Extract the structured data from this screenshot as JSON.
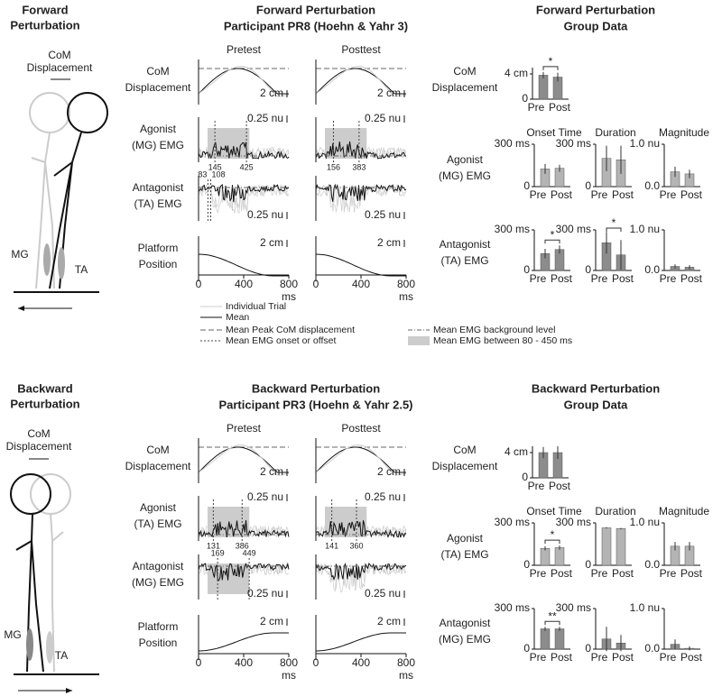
{
  "panels": [
    {
      "title": [
        "Forward",
        "Perturbation"
      ],
      "com_label": [
        "CoM",
        "Displacement"
      ],
      "muscle_labels": [
        "MG",
        "TA"
      ],
      "traces_title": [
        "Forward Perturbation",
        "Participant PR8 (Hoehn & Yahr 3)"
      ],
      "conditions": [
        {
          "name": "Pretest",
          "scale_labels": [
            "2 cm",
            "0.25 nu",
            "0.25 nu",
            "2 cm"
          ],
          "agonist_onsets": [
            145,
            425
          ],
          "antagonist_onsets": [
            83,
            108
          ]
        },
        {
          "name": "Posttest",
          "scale_labels": [
            "2 cm",
            "0.25 nu",
            "0.25 nu",
            "2 cm"
          ],
          "agonist_onsets": [
            156,
            383
          ]
        }
      ],
      "row_labels": [
        [
          "CoM",
          "Displacement"
        ],
        [
          "Agonist",
          "(MG) EMG"
        ],
        [
          "Antagonist",
          "(TA) EMG"
        ],
        [
          "Platform",
          "Position"
        ]
      ],
      "xlim": [
        0,
        800
      ],
      "xticks": [
        0,
        400,
        800
      ],
      "x_label": "ms",
      "group_title": [
        "Forward Perturbation",
        "Group Data"
      ],
      "group_row_labels": [
        [
          "CoM",
          "Displacement"
        ],
        [
          "Agonist",
          "(MG) EMG"
        ],
        [
          "Antagonist",
          "(TA) EMG"
        ]
      ]
    },
    {
      "title": [
        "Backward",
        "Perturbation"
      ],
      "com_label": [
        "CoM",
        "Displacement"
      ],
      "muscle_labels": [
        "MG",
        "TA"
      ],
      "traces_title": [
        "Backward Perturbation",
        "Participant PR3 (Hoehn & Yahr 2.5)"
      ],
      "conditions": [
        {
          "name": "Pretest",
          "scale_labels": [
            "2 cm",
            "0.25 nu",
            "0.25 nu",
            "2 cm"
          ],
          "agonist_onsets": [
            131,
            386
          ],
          "antagonist_onsets": [
            169,
            449
          ]
        },
        {
          "name": "Posttest",
          "scale_labels": [
            "2 cm",
            "0.25 nu",
            "0.25 nu",
            "2 cm"
          ],
          "agonist_onsets": [
            141,
            360
          ]
        }
      ],
      "row_labels": [
        [
          "CoM",
          "Displacement"
        ],
        [
          "Agonist",
          "(TA) EMG"
        ],
        [
          "Antagonist",
          "(MG) EMG"
        ],
        [
          "Platform",
          "Position"
        ]
      ],
      "xlim": [
        0,
        800
      ],
      "xticks": [
        0,
        400,
        800
      ],
      "x_label": "ms",
      "group_title": [
        "Backward Perturbation",
        "Group Data"
      ],
      "group_row_labels": [
        [
          "CoM",
          "Displacement"
        ],
        [
          "Agonist",
          "(TA) EMG"
        ],
        [
          "Antagonist",
          "(MG) EMG"
        ]
      ]
    }
  ],
  "legend": [
    "Individual Trial",
    "Mean",
    "Mean Peak CoM displacement",
    "Mean EMG onset or offset",
    "Mean EMG background level",
    "Mean EMG between 80 - 450 ms"
  ],
  "chart_data": [
    {
      "type": "bar",
      "categories": [
        "Pre",
        "Post"
      ],
      "values": [
        3.8,
        3.5
      ],
      "errors": [
        0.5,
        0.7
      ],
      "color": "#8c8c8c",
      "ylim": [
        0,
        5
      ],
      "yticks": [
        0,
        {
          "value": 4,
          "label": "4 cm"
        }
      ],
      "annotation": "*"
    },
    {
      "type": "bar",
      "title": "Onset Time",
      "categories": [
        "Pre",
        "Post"
      ],
      "values": [
        125,
        130
      ],
      "errors": [
        35,
        25
      ],
      "color": "#b4b4b4",
      "ylim": [
        0,
        300
      ],
      "yticks": [
        0,
        {
          "value": 300,
          "label": "300 ms"
        }
      ]
    },
    {
      "type": "bar",
      "title": "Duration",
      "categories": [
        "Pre",
        "Post"
      ],
      "values": [
        200,
        190
      ],
      "errors": [
        90,
        100
      ],
      "color": "#b4b4b4",
      "ylim": [
        0,
        300
      ],
      "yticks": [
        0,
        {
          "value": 300,
          "label": "300 ms"
        }
      ]
    },
    {
      "type": "bar",
      "title": "Magnitude",
      "categories": [
        "Pre",
        "Post"
      ],
      "values": [
        0.35,
        0.3
      ],
      "errors": [
        0.12,
        0.1
      ],
      "color": "#b4b4b4",
      "ylim": [
        0,
        1
      ],
      "yticks": [
        {
          "value": 0,
          "label": "0.0"
        },
        {
          "value": 1,
          "label": "1.0 nu"
        }
      ]
    },
    {
      "type": "bar",
      "categories": [
        "Pre",
        "Post"
      ],
      "values": [
        125,
        155
      ],
      "errors": [
        35,
        30
      ],
      "color": "#8c8c8c",
      "ylim": [
        0,
        300
      ],
      "yticks": [
        0,
        {
          "value": 300,
          "label": "300 ms"
        }
      ],
      "annotation": "*"
    },
    {
      "type": "bar",
      "categories": [
        "Pre",
        "Post"
      ],
      "values": [
        205,
        115
      ],
      "errors": [
        80,
        110
      ],
      "color": "#8c8c8c",
      "ylim": [
        0,
        300
      ],
      "yticks": [
        0,
        {
          "value": 300,
          "label": "300 ms"
        }
      ],
      "annotation": "*"
    },
    {
      "type": "bar",
      "categories": [
        "Pre",
        "Post"
      ],
      "values": [
        0.1,
        0.08
      ],
      "errors": [
        0.05,
        0.05
      ],
      "color": "#8c8c8c",
      "ylim": [
        0,
        1
      ],
      "yticks": [
        {
          "value": 0,
          "label": "0.0"
        },
        {
          "value": 1,
          "label": "1.0 nu"
        }
      ]
    },
    {
      "type": "bar",
      "categories": [
        "Pre",
        "Post"
      ],
      "values": [
        4,
        4
      ],
      "errors": [
        0.9,
        1
      ],
      "color": "#8c8c8c",
      "ylim": [
        0,
        5
      ],
      "yticks": [
        0,
        {
          "value": 4,
          "label": "4 cm"
        }
      ]
    },
    {
      "type": "bar",
      "title": "Onset Time",
      "categories": [
        "Pre",
        "Post"
      ],
      "values": [
        120,
        125
      ],
      "errors": [
        15,
        15
      ],
      "color": "#b4b4b4",
      "ylim": [
        0,
        300
      ],
      "yticks": [
        0,
        {
          "value": 300,
          "label": "300 ms"
        }
      ],
      "annotation": "*"
    },
    {
      "type": "bar",
      "title": "Duration",
      "categories": [
        "Pre",
        "Post"
      ],
      "values": [
        265,
        260
      ],
      "errors": [
        5,
        5
      ],
      "color": "#b4b4b4",
      "ylim": [
        0,
        300
      ],
      "yticks": [
        0,
        {
          "value": 300,
          "label": "300 ms"
        }
      ]
    },
    {
      "type": "bar",
      "title": "Magnitude",
      "categories": [
        "Pre",
        "Post"
      ],
      "values": [
        0.45,
        0.45
      ],
      "errors": [
        0.1,
        0.1
      ],
      "color": "#b4b4b4",
      "ylim": [
        0,
        1
      ],
      "yticks": [
        {
          "value": 0,
          "label": "0.0"
        },
        {
          "value": 1,
          "label": "1.0 nu"
        }
      ]
    },
    {
      "type": "bar",
      "categories": [
        "Pre",
        "Post"
      ],
      "values": [
        150,
        150
      ],
      "errors": [
        15,
        15
      ],
      "color": "#8c8c8c",
      "ylim": [
        0,
        300
      ],
      "yticks": [
        0,
        {
          "value": 300,
          "label": "300 ms"
        }
      ],
      "annotation": "**"
    },
    {
      "type": "bar",
      "categories": [
        "Pre",
        "Post"
      ],
      "values": [
        75,
        45
      ],
      "errors": [
        90,
        60
      ],
      "color": "#8c8c8c",
      "ylim": [
        0,
        300
      ],
      "yticks": [
        0,
        {
          "value": 300,
          "label": "300 ms"
        }
      ]
    },
    {
      "type": "bar",
      "categories": [
        "Pre",
        "Post"
      ],
      "values": [
        0.12,
        0.02
      ],
      "errors": [
        0.12,
        0.05
      ],
      "color": "#8c8c8c",
      "ylim": [
        0,
        1
      ],
      "yticks": [
        {
          "value": 0,
          "label": "0.0"
        },
        {
          "value": 1,
          "label": "1.0 nu"
        }
      ]
    }
  ]
}
